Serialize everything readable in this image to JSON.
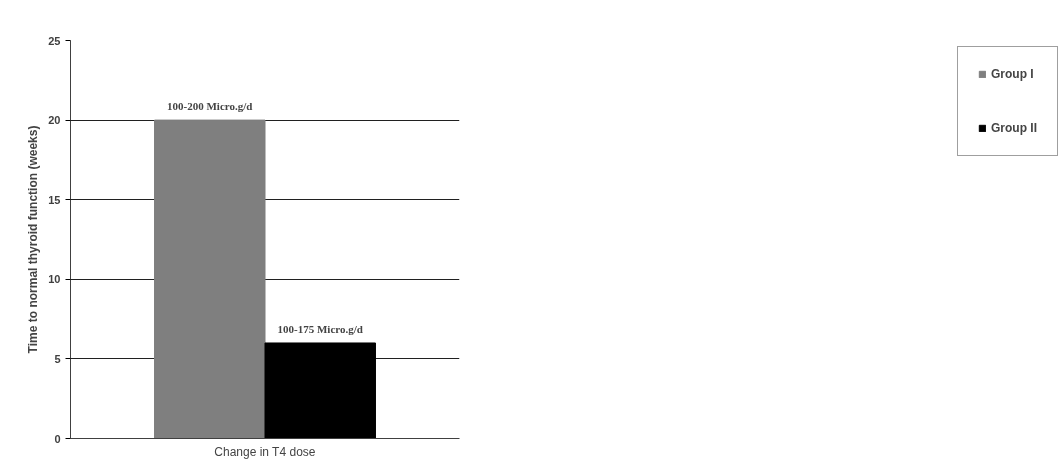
{
  "chart_data": {
    "type": "bar",
    "xlabel": "Change in T4 dose",
    "ylabel": "Time to normal thyroid function (weeks)",
    "categories": [
      null
    ],
    "series": [
      {
        "name": "Group I",
        "color": "#7f7f7f",
        "values": [
          20
        ],
        "value_labels": [
          "100-200 Micro.g/d"
        ]
      },
      {
        "name": "Group II",
        "color": "#000000",
        "values": [
          6
        ],
        "value_labels": [
          "100-175 Micro.g/d"
        ]
      }
    ],
    "ylim": [
      0,
      25
    ],
    "yticks": [
      0,
      5,
      10,
      15,
      20,
      25
    ],
    "grid": "y",
    "legend": "right"
  }
}
